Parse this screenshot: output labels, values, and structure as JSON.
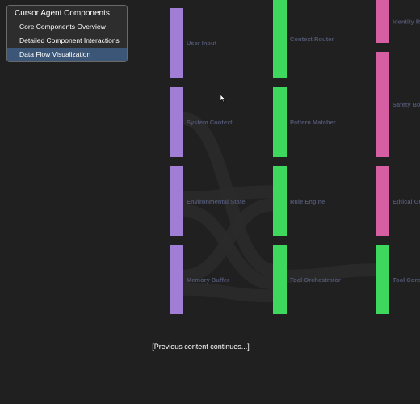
{
  "menu": {
    "title": "Cursor Agent Components",
    "items": [
      {
        "label": "Core Components Overview",
        "active": false
      },
      {
        "label": "Detailed Component Interactions",
        "active": false
      },
      {
        "label": "Data Flow Visualization",
        "active": true
      }
    ]
  },
  "diagram": {
    "colors": {
      "input": "#a17ed6",
      "processing": "#3fd85e",
      "safety": "#d65ea3",
      "link": "#2a2a2a"
    },
    "columns": [
      {
        "group": "input",
        "nodes": [
          {
            "id": "user_input",
            "label": "User Input"
          },
          {
            "id": "system_context",
            "label": "System Context"
          },
          {
            "id": "environmental_state",
            "label": "Environmental State"
          },
          {
            "id": "memory_buffer",
            "label": "Memory Buffer"
          }
        ]
      },
      {
        "group": "processing",
        "nodes": [
          {
            "id": "context_router",
            "label": "Context Router"
          },
          {
            "id": "pattern_matcher",
            "label": "Pattern Matcher"
          },
          {
            "id": "rule_engine",
            "label": "Rule Engine"
          },
          {
            "id": "tool_orchestrator",
            "label": "Tool Orchestrator"
          }
        ]
      },
      {
        "group": "safety",
        "nodes": [
          {
            "id": "identity_rules",
            "label": "Identity Ru",
            "group": "safety"
          },
          {
            "id": "safety_boundaries",
            "label": "Safety Bou",
            "group": "safety"
          },
          {
            "id": "ethical_guidelines",
            "label": "Ethical Gui",
            "group": "safety"
          },
          {
            "id": "tool_constraints",
            "label": "Tool Constr",
            "group": "processing"
          }
        ]
      }
    ],
    "links": [
      {
        "source": "system_context",
        "target": "tool_orchestrator"
      },
      {
        "source": "environmental_state",
        "target": "rule_engine"
      },
      {
        "source": "environmental_state",
        "target": "tool_orchestrator"
      },
      {
        "source": "memory_buffer",
        "target": "rule_engine"
      },
      {
        "source": "memory_buffer",
        "target": "tool_orchestrator"
      },
      {
        "source": "tool_orchestrator",
        "target": "tool_constraints"
      }
    ]
  },
  "footer": {
    "text": "[Previous content continues...]"
  }
}
